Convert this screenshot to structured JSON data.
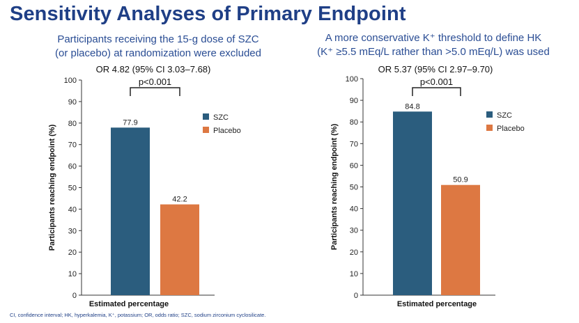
{
  "title": "Sensitivity Analyses of Primary Endpoint",
  "footnote": "CI, confidence interval; HK, hyperkalemia, K⁺, potassium; OR, odds ratio; SZC, sodium zirconium cyclosilicate.",
  "colors": {
    "title": "#1f3f86",
    "szc": "#2b5d7e",
    "placebo": "#dd7842"
  },
  "chart_data": [
    {
      "type": "bar",
      "subtitle_lines": [
        "Participants receiving the 15-g dose of SZC",
        "(or placebo) at randomization were excluded"
      ],
      "odds_ratio": "OR 4.82 (95% CI 3.03–7.68)",
      "p_value": "p<0.001",
      "categories": [
        "SZC",
        "Placebo"
      ],
      "values": [
        77.9,
        42.2
      ],
      "value_labels": [
        "77.9",
        "42.2"
      ],
      "xlabel": "Estimated percentage",
      "ylabel": "Participants reaching endpoint (%)",
      "ylim": [
        0,
        100
      ],
      "yticks": [
        "0",
        "10",
        "20",
        "30",
        "40",
        "50",
        "60",
        "70",
        "80",
        "90",
        "100"
      ],
      "legend": [
        "SZC",
        "Placebo"
      ],
      "legend_position": "right"
    },
    {
      "type": "bar",
      "subtitle_lines": [
        "A more conservative K⁺ threshold to define HK",
        "(K⁺ ≥5.5 mEq/L rather than >5.0 mEq/L) was used"
      ],
      "odds_ratio": "OR 5.37 (95% CI 2.97–9.70)",
      "p_value": "p<0.001",
      "categories": [
        "SZC",
        "Placebo"
      ],
      "values": [
        84.8,
        50.9
      ],
      "value_labels": [
        "84.8",
        "50.9"
      ],
      "xlabel": "Estimated percentage",
      "ylabel": "Participants reaching endpoint (%)",
      "ylim": [
        0,
        100
      ],
      "yticks": [
        "0",
        "10",
        "20",
        "30",
        "40",
        "50",
        "60",
        "70",
        "80",
        "90",
        "100"
      ],
      "legend": [
        "SZC",
        "Placebo"
      ],
      "legend_position": "right"
    }
  ]
}
